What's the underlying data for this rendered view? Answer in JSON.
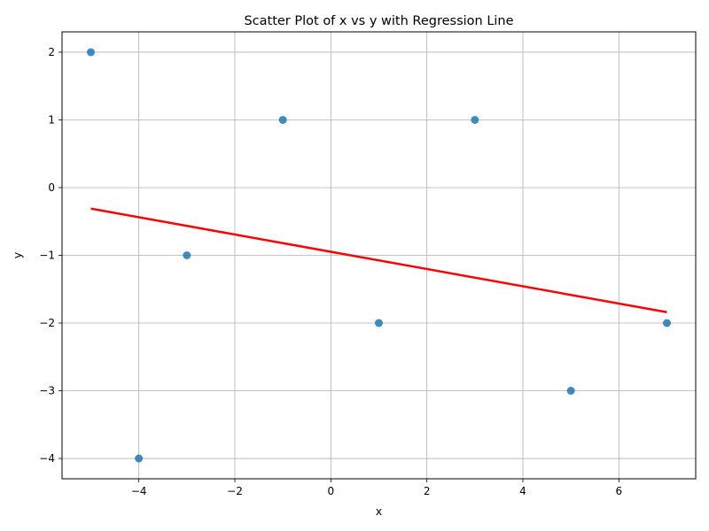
{
  "chart_data": {
    "type": "scatter",
    "title": "Scatter Plot of x vs y with Regression Line",
    "xlabel": "x",
    "ylabel": "y",
    "xlim": [
      -5.6,
      7.6
    ],
    "ylim": [
      -4.3,
      2.3
    ],
    "xticks": [
      -4,
      -2,
      0,
      2,
      4,
      6
    ],
    "yticks": [
      -4,
      -3,
      -2,
      -1,
      0,
      1,
      2
    ],
    "xtick_labels": [
      "−4",
      "−2",
      "0",
      "2",
      "4",
      "6"
    ],
    "ytick_labels": [
      "−4",
      "−3",
      "−2",
      "−1",
      "0",
      "1",
      "2"
    ],
    "grid": true,
    "points": [
      {
        "x": -5,
        "y": 2
      },
      {
        "x": -4,
        "y": -4
      },
      {
        "x": -3,
        "y": -1
      },
      {
        "x": -1,
        "y": 1
      },
      {
        "x": 1,
        "y": -2
      },
      {
        "x": 3,
        "y": 1
      },
      {
        "x": 5,
        "y": -3
      },
      {
        "x": 7,
        "y": -2
      }
    ],
    "regression_line": {
      "x": [
        -5,
        7
      ],
      "y": [
        -0.31,
        -1.84
      ]
    },
    "colors": {
      "points": "#1f77b4",
      "regression": "#ff0000",
      "grid": "#b0b0b0"
    }
  }
}
